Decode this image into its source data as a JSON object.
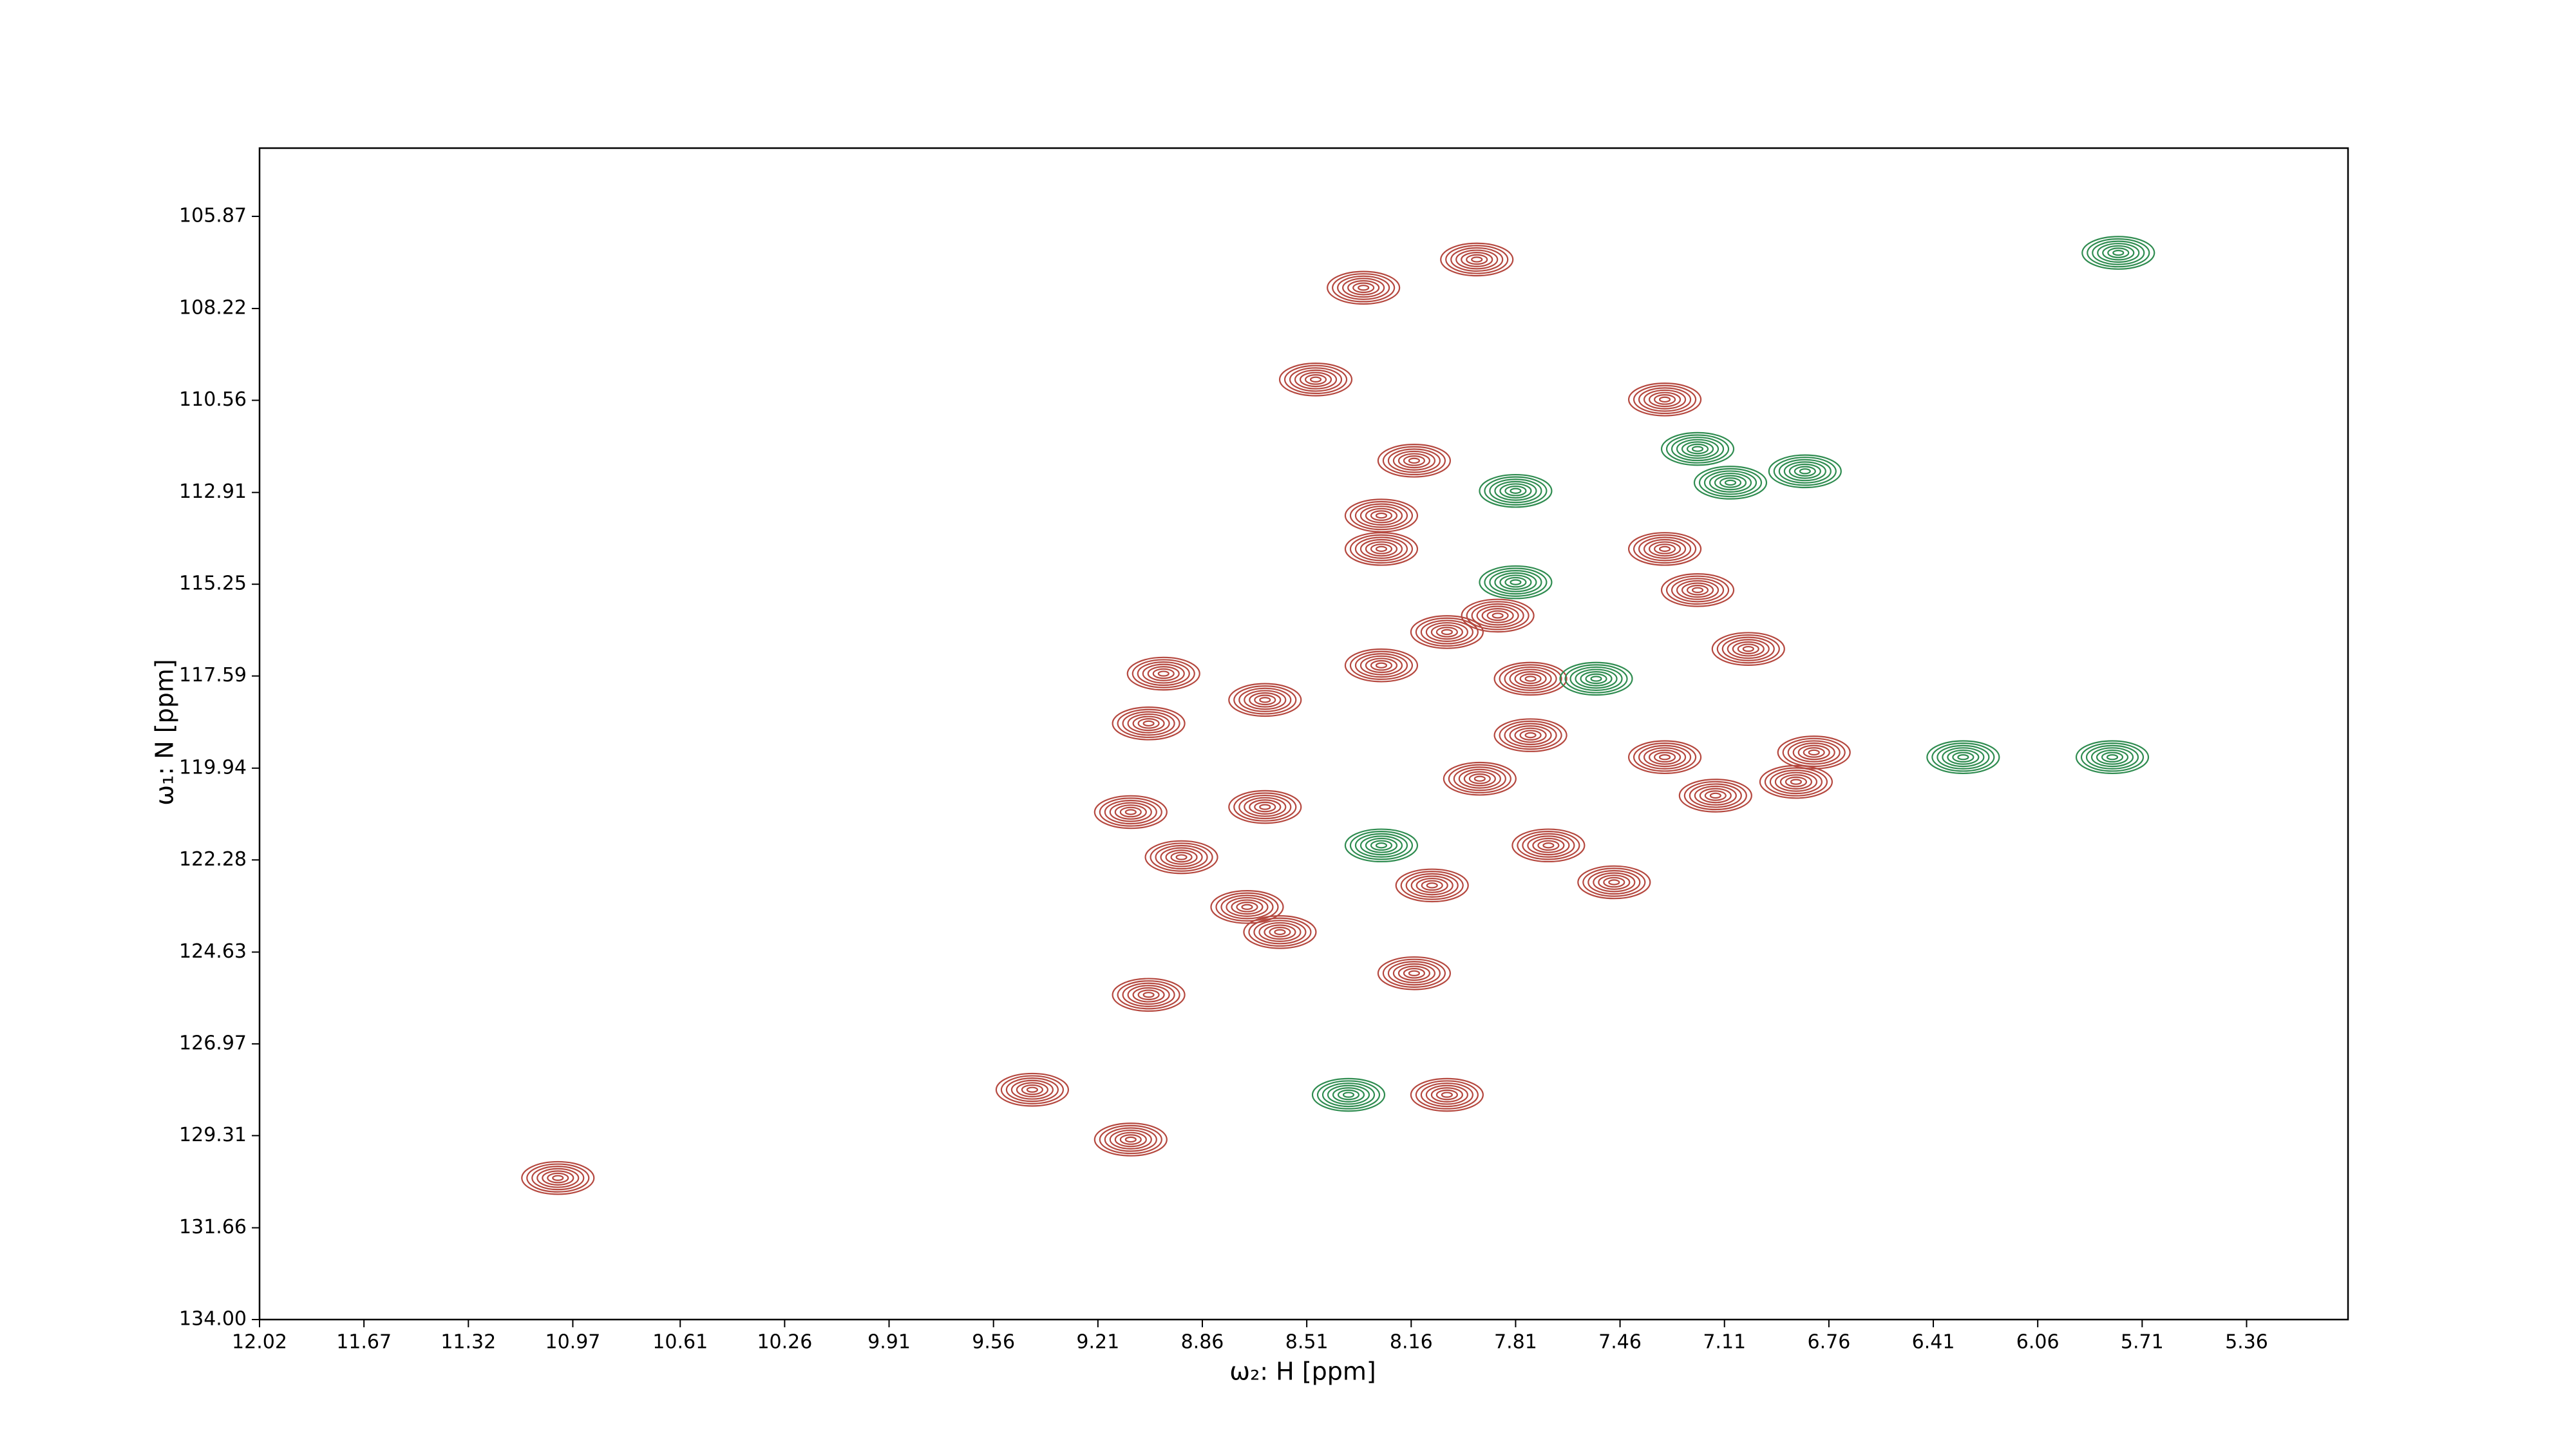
{
  "chart_data": {
    "type": "contour",
    "x_label": "ω₂: H [ppm]",
    "y_label": "ω₁: N [ppm]",
    "xlim": [
      12.02,
      5.02
    ],
    "ylim": [
      134,
      104.13
    ],
    "xticks": [
      12.02,
      11.67,
      11.32,
      10.97,
      10.61,
      10.26,
      9.91,
      9.56,
      9.21,
      8.86,
      8.51,
      8.16,
      7.81,
      7.46,
      7.11,
      6.76,
      6.41,
      6.06,
      5.71,
      5.36
    ],
    "yticks": [
      {
        "value": 134,
        "label": "134.00"
      },
      131.66,
      129.31,
      126.97,
      124.63,
      122.28,
      119.94,
      117.59,
      115.25,
      112.91,
      110.56,
      108.22,
      105.87
    ],
    "series": [
      {
        "color": "#b5483f",
        "x": [
          7.94,
          8.32,
          11.02,
          8.48,
          7.31,
          8.15,
          8.26,
          8.26,
          7.87,
          7.31,
          7.2,
          7.03,
          8.04,
          8.26,
          7.76,
          8.99,
          9.04,
          8.65,
          7.76,
          7.31,
          6.81,
          7.93,
          7.14,
          9.1,
          8.65,
          7.7,
          8.93,
          8.09,
          7.48,
          8.71,
          8.6,
          8.15,
          9.04,
          9.43,
          8.04,
          9.1,
          6.87
        ],
        "y": [
          106.97,
          107.69,
          130.39,
          110.03,
          110.54,
          112.1,
          113.5,
          114.35,
          116.05,
          114.35,
          115.4,
          116.9,
          116.47,
          117.32,
          117.66,
          117.53,
          118.8,
          118.2,
          119.1,
          119.66,
          119.54,
          120.21,
          120.64,
          121.06,
          120.93,
          121.91,
          122.21,
          122.93,
          122.85,
          123.48,
          124.12,
          125.17,
          125.72,
          128.14,
          128.27,
          129.41,
          120.29
        ]
      },
      {
        "color": "#2f8c50",
        "x": [
          5.79,
          7.09,
          6.84,
          7.2,
          7.81,
          7.81,
          7.54,
          8.26,
          8.37,
          5.81,
          6.31
        ],
        "y": [
          106.8,
          112.66,
          112.37,
          111.8,
          112.87,
          115.2,
          117.66,
          121.91,
          128.27,
          119.66,
          119.66
        ]
      }
    ]
  }
}
